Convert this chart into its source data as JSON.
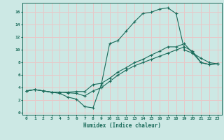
{
  "title": "",
  "xlabel": "Humidex (Indice chaleur)",
  "bg_color": "#cce8e4",
  "grid_color": "#e8c8c8",
  "line_color": "#1a6b5a",
  "xlim": [
    -0.5,
    23.5
  ],
  "ylim": [
    -0.3,
    17.5
  ],
  "xticks": [
    0,
    1,
    2,
    3,
    4,
    5,
    6,
    7,
    8,
    9,
    10,
    11,
    12,
    13,
    14,
    15,
    16,
    17,
    18,
    19,
    20,
    21,
    22,
    23
  ],
  "yticks": [
    0,
    2,
    4,
    6,
    8,
    10,
    12,
    14,
    16
  ],
  "line1_x": [
    0,
    1,
    2,
    3,
    4,
    5,
    6,
    7,
    8,
    9,
    10,
    11,
    12,
    13,
    14,
    15,
    16,
    17,
    18,
    19,
    20,
    21,
    22,
    23
  ],
  "line1_y": [
    3.5,
    3.7,
    3.5,
    3.3,
    3.3,
    3.3,
    3.4,
    3.4,
    4.5,
    4.7,
    5.5,
    6.5,
    7.2,
    8.0,
    8.5,
    9.2,
    9.8,
    10.5,
    10.5,
    11.0,
    9.5,
    8.7,
    8.0,
    7.8
  ],
  "line2_x": [
    0,
    1,
    2,
    3,
    4,
    5,
    6,
    7,
    8,
    9,
    10,
    11,
    12,
    13,
    14,
    15,
    16,
    17,
    18,
    19,
    20,
    21,
    22,
    23
  ],
  "line2_y": [
    3.5,
    3.7,
    3.5,
    3.3,
    3.1,
    2.5,
    2.2,
    1.0,
    0.8,
    4.5,
    11.0,
    11.5,
    13.0,
    14.5,
    15.8,
    16.0,
    16.5,
    16.7,
    15.8,
    10.0,
    9.5,
    8.0,
    7.7,
    7.8
  ],
  "line3_x": [
    0,
    1,
    2,
    3,
    4,
    5,
    6,
    7,
    8,
    9,
    10,
    11,
    12,
    13,
    14,
    15,
    16,
    17,
    18,
    19,
    20,
    21,
    22,
    23
  ],
  "line3_y": [
    3.5,
    3.7,
    3.5,
    3.3,
    3.3,
    3.2,
    3.1,
    2.7,
    3.5,
    4.0,
    5.0,
    6.0,
    6.8,
    7.5,
    8.0,
    8.5,
    9.0,
    9.5,
    10.0,
    10.5,
    9.8,
    8.0,
    7.7,
    7.8
  ]
}
